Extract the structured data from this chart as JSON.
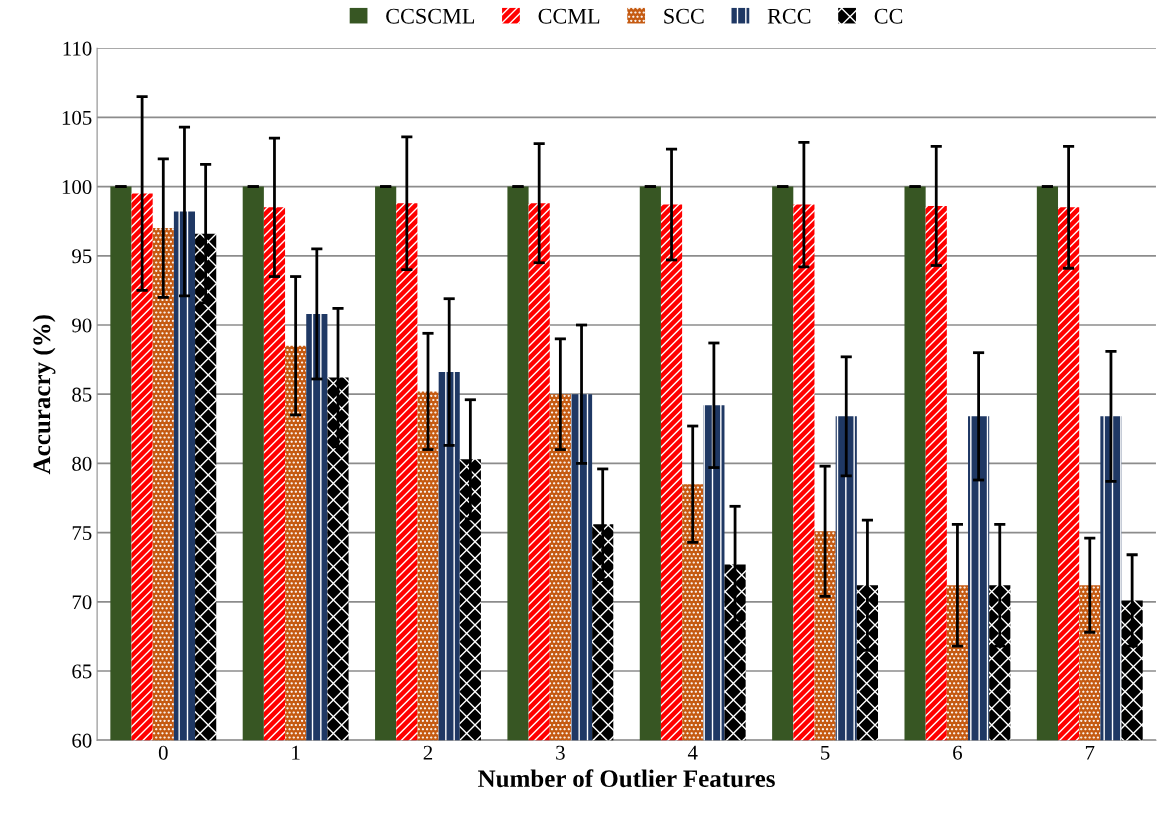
{
  "chart_data": {
    "type": "bar",
    "xlabel": "Number of Outlier Features",
    "ylabel": "Accuracry (%)",
    "categories": [
      "0",
      "1",
      "2",
      "3",
      "4",
      "5",
      "6",
      "7"
    ],
    "series": [
      {
        "name": "CCSCML",
        "color": "#375623",
        "values": [
          100,
          100,
          100,
          100,
          100,
          100,
          100,
          100
        ],
        "errors": [
          0,
          0,
          0,
          0,
          0,
          0,
          0,
          0
        ]
      },
      {
        "name": "CCML",
        "color": "#ff0000",
        "values": [
          99.5,
          98.5,
          98.8,
          98.8,
          98.7,
          98.7,
          98.6,
          98.5
        ],
        "errors": [
          7,
          5,
          4.8,
          4.3,
          4,
          4.5,
          4.3,
          4.4
        ]
      },
      {
        "name": "SCC",
        "color": "#c55a11",
        "values": [
          97,
          88.5,
          85.2,
          85,
          78.5,
          75.1,
          71.2,
          71.2
        ],
        "errors": [
          5,
          5,
          4.2,
          4,
          4.2,
          4.7,
          4.4,
          3.4
        ]
      },
      {
        "name": "RCC",
        "color": "#1f3864",
        "values": [
          98.2,
          90.8,
          86.6,
          85,
          84.2,
          83.4,
          83.4,
          83.4
        ],
        "errors": [
          6.1,
          4.7,
          5.3,
          5,
          4.5,
          4.3,
          4.6,
          4.7
        ]
      },
      {
        "name": "CC",
        "color": "#000000",
        "values": [
          96.6,
          86.2,
          80.3,
          75.6,
          72.7,
          71.2,
          71.2,
          70.1
        ],
        "errors": [
          5,
          5,
          4.3,
          4,
          4.2,
          4.7,
          4.4,
          3.3
        ]
      }
    ],
    "ylim": [
      60,
      110
    ],
    "yticks": [
      60,
      65,
      70,
      75,
      80,
      85,
      90,
      95,
      100,
      105,
      110
    ],
    "grid": "y",
    "legend": "top"
  }
}
